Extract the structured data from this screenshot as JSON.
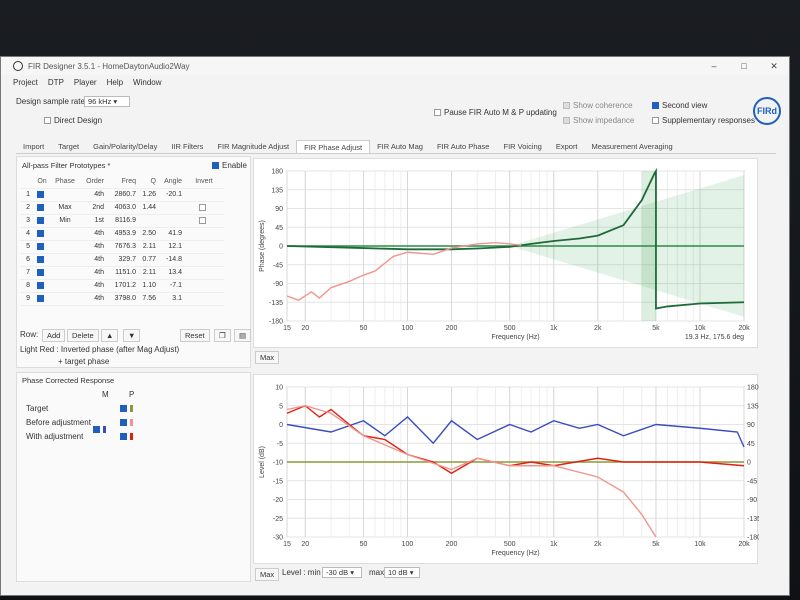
{
  "window": {
    "title": "FIR Designer 3.5.1 - HomeDaytonAudio2Way",
    "controls": [
      "–",
      "□",
      "✕"
    ]
  },
  "menu": [
    "Project",
    "DTP",
    "Player",
    "Help",
    "Window"
  ],
  "top": {
    "sample_rate_label": "Design sample rate",
    "sample_rate_value": "96 kHz",
    "direct_design": "Direct Design",
    "pause": "Pause FIR Auto M & P updating",
    "show_coherence": "Show coherence",
    "show_impedance": "Show impedance",
    "second_view": "Second view",
    "supplementary": "Supplementary responses",
    "logo": "FIRd"
  },
  "tabs": [
    "Import",
    "Target",
    "Gain/Polarity/Delay",
    "IIR Filters",
    "FIR Magnitude Adjust",
    "FIR Phase Adjust",
    "FIR Auto Mag",
    "FIR Auto Phase",
    "FIR Voicing",
    "Export",
    "Measurement Averaging"
  ],
  "active_tab": 5,
  "allpass": {
    "title": "All-pass Filter Prototypes *",
    "enable": "Enable",
    "headers": [
      "",
      "On",
      "Phase",
      "Order",
      "Freq",
      "Q",
      "Angle",
      "Invert"
    ],
    "rows": [
      [
        "1",
        "",
        "4th",
        "2860.7",
        "1.26",
        "-20.1"
      ],
      [
        "2",
        "Max",
        "2nd",
        "4063.0",
        "1.44",
        ""
      ],
      [
        "3",
        "Min",
        "1st",
        "8116.9",
        "",
        ""
      ],
      [
        "4",
        "",
        "4th",
        "4953.9",
        "2.50",
        "41.9"
      ],
      [
        "5",
        "",
        "4th",
        "7676.3",
        "2.11",
        "12.1"
      ],
      [
        "6",
        "",
        "4th",
        "329.7",
        "0.77",
        "-14.8"
      ],
      [
        "7",
        "",
        "4th",
        "1151.0",
        "2.11",
        "13.4"
      ],
      [
        "8",
        "",
        "4th",
        "1701.2",
        "1.10",
        "-7.1"
      ],
      [
        "9",
        "",
        "4th",
        "3798.0",
        "7.56",
        "3.1"
      ]
    ],
    "row_label": "Row:",
    "add": "Add",
    "delete": "Delete",
    "reset": "Reset",
    "note1": "Light Red : Inverted phase (after Mag Adjust)",
    "note2": "+ target phase"
  },
  "pcr": {
    "title": "Phase Corrected Response",
    "col_m": "M",
    "col_p": "P",
    "rows": [
      "Target",
      "Before adjustment",
      "With adjustment"
    ]
  },
  "phase_chart": {
    "ylabel": "Phase (degrees)",
    "xlabel": "Frequency (Hz)",
    "readout": "19.3 Hz, 175.6 deg",
    "max_btn": "Max"
  },
  "level_chart": {
    "ylabel": "Level (dB)",
    "xlabel": "Frequency (Hz)",
    "max_btn": "Max",
    "level_label": "Level : min",
    "min_val": "-30 dB",
    "max_label": "max",
    "max_val": "10 dB"
  },
  "chart_data": [
    {
      "type": "line",
      "title": "",
      "xlabel": "Frequency (Hz)",
      "ylabel": "Phase (degrees)",
      "xscale": "log",
      "xlim": [
        15,
        20000
      ],
      "ylim": [
        -180,
        180
      ],
      "xticks": [
        "15",
        "20",
        "50",
        "100",
        "200",
        "500",
        "1k",
        "2k",
        "5k",
        "10k",
        "20k"
      ],
      "yticks": [
        "180",
        "135",
        "90",
        "45",
        "0",
        "-45",
        "-90",
        "-135",
        "-180"
      ],
      "grid": true,
      "series": [
        {
          "color": "#1e6b3a",
          "x": [
            15,
            50,
            100,
            200,
            300,
            500,
            700,
            1000,
            1500,
            2000,
            3000,
            4000,
            4900,
            5000,
            6000,
            10000,
            20000
          ],
          "y": [
            0,
            -5,
            -8,
            -8,
            -6,
            -2,
            5,
            12,
            18,
            25,
            50,
            110,
            175,
            -150,
            -145,
            -138,
            -135
          ]
        },
        {
          "color": "#f0958e",
          "x": [
            15,
            18,
            22,
            25,
            30,
            40,
            50,
            60,
            80,
            100,
            150,
            200,
            300,
            400,
            500,
            600
          ],
          "y": [
            -120,
            -130,
            -110,
            -125,
            -100,
            -85,
            -70,
            -60,
            -25,
            -15,
            -20,
            -5,
            5,
            8,
            5,
            2
          ]
        }
      ]
    },
    {
      "type": "line",
      "title": "",
      "xlabel": "Frequency (Hz)",
      "ylabel": "Level (dB)",
      "xscale": "log",
      "xlim": [
        15,
        20000
      ],
      "ylim": [
        -30,
        10
      ],
      "y2lim": [
        -180,
        180
      ],
      "xticks": [
        "15",
        "20",
        "50",
        "100",
        "200",
        "500",
        "1k",
        "2k",
        "5k",
        "10k",
        "20k"
      ],
      "yticks": [
        "10",
        "5",
        "0",
        "-5",
        "-10",
        "-15",
        "-20",
        "-25",
        "-30"
      ],
      "y2ticks": [
        "180",
        "135",
        "90",
        "45",
        "0",
        "-45",
        "-90",
        "-135",
        "-180"
      ],
      "grid": true,
      "series": [
        {
          "color": "#8a9a3a",
          "x": [
            15,
            20000
          ],
          "y": [
            -10,
            -10
          ]
        },
        {
          "color": "#3b4cc0",
          "x": [
            15,
            30,
            50,
            70,
            100,
            150,
            200,
            300,
            500,
            700,
            1000,
            1500,
            2000,
            3000,
            5000,
            10000,
            18000,
            20000
          ],
          "y": [
            0,
            -2,
            1,
            -3,
            2,
            -5,
            1,
            -4,
            0,
            -2,
            1,
            -1,
            0,
            -3,
            0,
            -1,
            -2,
            -6
          ]
        },
        {
          "color": "#e02010",
          "x": [
            15,
            20,
            25,
            30,
            40,
            50,
            70,
            100,
            150,
            200,
            300,
            500,
            700,
            1000,
            2000,
            3000,
            5000,
            10000,
            20000
          ],
          "y": [
            3,
            5,
            2,
            4,
            0,
            -3,
            -4,
            -8,
            -10,
            -13,
            -9,
            -11,
            -10,
            -11,
            -9,
            -10,
            -10,
            -10,
            -11
          ]
        },
        {
          "color": "#f0958e",
          "x": [
            15,
            20,
            30,
            50,
            100,
            200,
            300,
            500,
            1000,
            2000,
            3000,
            4000,
            5000
          ],
          "y": [
            4,
            5,
            3,
            -3,
            -8,
            -12,
            -9,
            -11,
            -11,
            -14,
            -18,
            -24,
            -30
          ]
        }
      ]
    }
  ]
}
